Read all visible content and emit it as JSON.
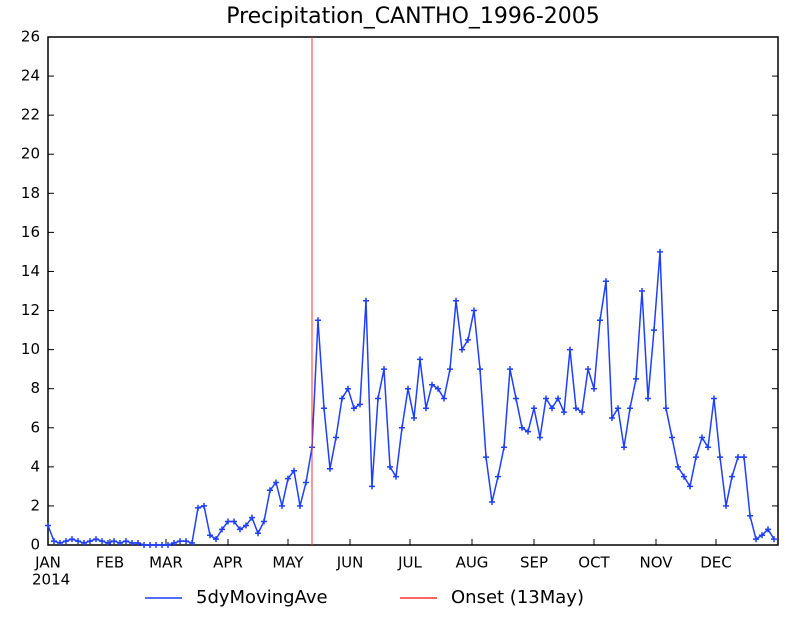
{
  "chart_data": {
    "type": "line",
    "title": "Precipitation_CANTHO_1996-2005",
    "x_sublabel": "2014",
    "x": [
      0,
      3,
      6,
      9,
      12,
      15,
      18,
      21,
      24,
      27,
      30,
      33,
      36,
      39,
      42,
      45,
      48,
      51,
      54,
      57,
      60,
      63,
      66,
      69,
      72,
      75,
      78,
      81,
      84,
      87,
      90,
      93,
      96,
      99,
      102,
      105,
      108,
      111,
      114,
      117,
      120,
      123,
      126,
      129,
      132,
      135,
      138,
      141,
      144,
      147,
      150,
      153,
      156,
      159,
      162,
      165,
      168,
      171,
      174,
      177,
      180,
      183,
      186,
      189,
      192,
      195,
      198,
      201,
      204,
      207,
      210,
      213,
      216,
      219,
      222,
      225,
      228,
      231,
      234,
      237,
      240,
      243,
      246,
      249,
      252,
      255,
      258,
      261,
      264,
      267,
      270,
      273,
      276,
      279,
      282,
      285,
      288,
      291,
      294,
      297,
      300,
      303,
      306,
      309,
      312,
      315,
      318,
      321,
      324,
      327,
      330,
      333,
      336,
      339,
      342,
      345,
      348,
      351,
      354,
      357,
      360,
      363
    ],
    "series": [
      {
        "name": "5dyMovingAve",
        "color": "#1f3fff",
        "values": [
          1.0,
          0.2,
          0.1,
          0.2,
          0.3,
          0.2,
          0.1,
          0.2,
          0.3,
          0.2,
          0.1,
          0.2,
          0.1,
          0.2,
          0.1,
          0.1,
          0.0,
          0.0,
          0.0,
          0.0,
          0.0,
          0.1,
          0.2,
          0.2,
          0.1,
          1.9,
          2.0,
          0.5,
          0.3,
          0.8,
          1.2,
          1.2,
          0.8,
          1.0,
          1.4,
          0.6,
          1.2,
          2.8,
          3.2,
          2.0,
          3.4,
          3.8,
          2.0,
          3.2,
          5.0,
          11.5,
          7.0,
          3.9,
          5.5,
          7.5,
          8.0,
          7.0,
          7.2,
          12.5,
          3.0,
          7.5,
          9.0,
          4.0,
          3.5,
          6.0,
          8.0,
          6.5,
          9.5,
          7.0,
          8.2,
          8.0,
          7.5,
          9.0,
          12.5,
          10.0,
          10.5,
          12.0,
          9.0,
          4.5,
          2.2,
          3.5,
          5.0,
          9.0,
          7.5,
          6.0,
          5.8,
          7.0,
          5.5,
          7.5,
          7.0,
          7.5,
          6.8,
          10.0,
          7.0,
          6.8,
          9.0,
          8.0,
          11.5,
          13.5,
          6.5,
          7.0,
          5.0,
          7.0,
          8.5,
          13.0,
          7.5,
          11.0,
          15.0,
          7.0,
          5.5,
          4.0,
          3.5,
          3.0,
          4.5,
          5.5,
          5.0,
          7.5,
          4.5,
          2.0,
          3.5,
          4.5,
          4.5,
          1.5,
          0.3,
          0.5,
          0.8,
          0.3
        ]
      }
    ],
    "onset": {
      "name": "Onset (13May)",
      "color": "#ff3030",
      "x": 132
    },
    "xlim": [
      0,
      365
    ],
    "xticks": [
      {
        "value": 0,
        "label": "JAN"
      },
      {
        "value": 31,
        "label": "FEB"
      },
      {
        "value": 59,
        "label": "MAR"
      },
      {
        "value": 90,
        "label": "APR"
      },
      {
        "value": 120,
        "label": "MAY"
      },
      {
        "value": 151,
        "label": "JUN"
      },
      {
        "value": 181,
        "label": "JUL"
      },
      {
        "value": 212,
        "label": "AUG"
      },
      {
        "value": 243,
        "label": "SEP"
      },
      {
        "value": 273,
        "label": "OCT"
      },
      {
        "value": 304,
        "label": "NOV"
      },
      {
        "value": 334,
        "label": "DEC"
      }
    ],
    "ylim": [
      0,
      26
    ],
    "yticks": [
      0,
      2,
      4,
      6,
      8,
      10,
      12,
      14,
      16,
      18,
      20,
      22,
      24,
      26
    ]
  }
}
